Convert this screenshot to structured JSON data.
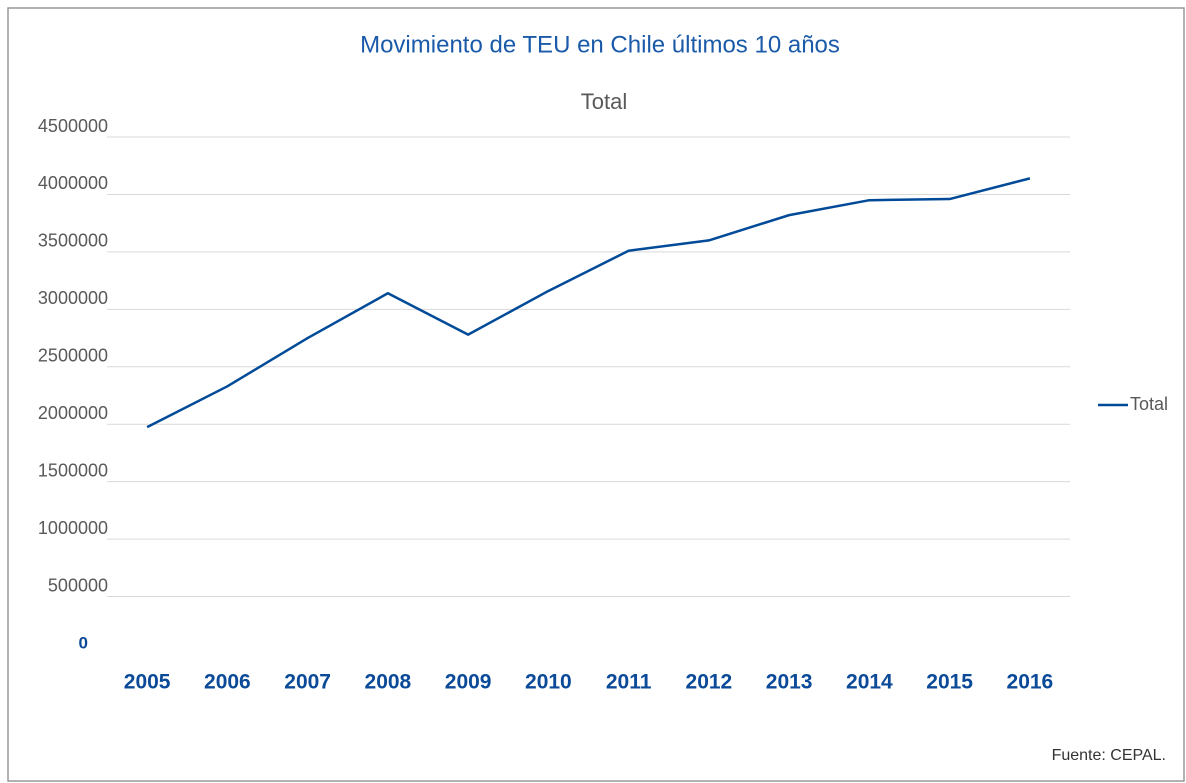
{
  "chart_data": {
    "type": "line",
    "title": "Movimiento de TEU en Chile últimos 10 años",
    "subtitle": "Total",
    "source": "Fuente: CEPAL.",
    "categories": [
      "2005",
      "2006",
      "2007",
      "2008",
      "2009",
      "2010",
      "2011",
      "2012",
      "2013",
      "2014",
      "2015",
      "2016"
    ],
    "series": [
      {
        "name": "Total",
        "color": "#004a98",
        "values": [
          1975000,
          2330000,
          2750000,
          3140000,
          2780000,
          3160000,
          3510000,
          3600000,
          3820000,
          3950000,
          3960000,
          4140000
        ]
      }
    ],
    "ylim": [
      0,
      4500000
    ],
    "yticks": [
      0,
      500000,
      1000000,
      1500000,
      2000000,
      2500000,
      3000000,
      3500000,
      4000000,
      4500000
    ],
    "grid": true,
    "legend": "right"
  }
}
